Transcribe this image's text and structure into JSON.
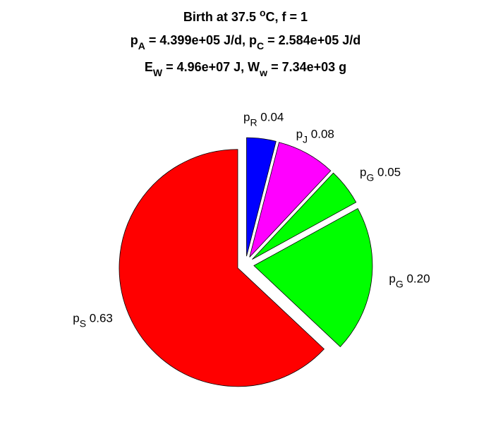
{
  "chart_data": {
    "type": "pie",
    "title": [
      [
        {
          "text": "Birth at 37.5 "
        },
        {
          "text": "o",
          "script": "sup"
        },
        {
          "text": "C, f = 1"
        }
      ],
      [
        {
          "text": "p"
        },
        {
          "text": "A",
          "script": "sub"
        },
        {
          "text": " = 4.399e+05 J/d, p"
        },
        {
          "text": "C",
          "script": "sub"
        },
        {
          "text": " = 2.584e+05 J/d"
        }
      ],
      [
        {
          "text": "E"
        },
        {
          "text": "W",
          "script": "sub"
        },
        {
          "text": " = 4.96e+07 J, W"
        },
        {
          "text": "w",
          "script": "sub"
        },
        {
          "text": " = 7.34e+03 g"
        }
      ]
    ],
    "categories": [
      {
        "text": "p",
        "sub": "R"
      },
      {
        "text": "p",
        "sub": "J"
      },
      {
        "text": "p",
        "sub": "G"
      },
      {
        "text": "p",
        "sub": "G"
      },
      {
        "text": "p",
        "sub": "S"
      }
    ],
    "values": [
      0.04,
      0.08,
      0.05,
      0.2,
      0.63
    ],
    "value_labels": [
      "0.04",
      "0.08",
      "0.05",
      "0.20",
      "0.63"
    ],
    "colors": [
      "#0000ff",
      "#ff00ff",
      "#00ff00",
      "#00ff00",
      "#ff0000"
    ],
    "explode": true
  }
}
